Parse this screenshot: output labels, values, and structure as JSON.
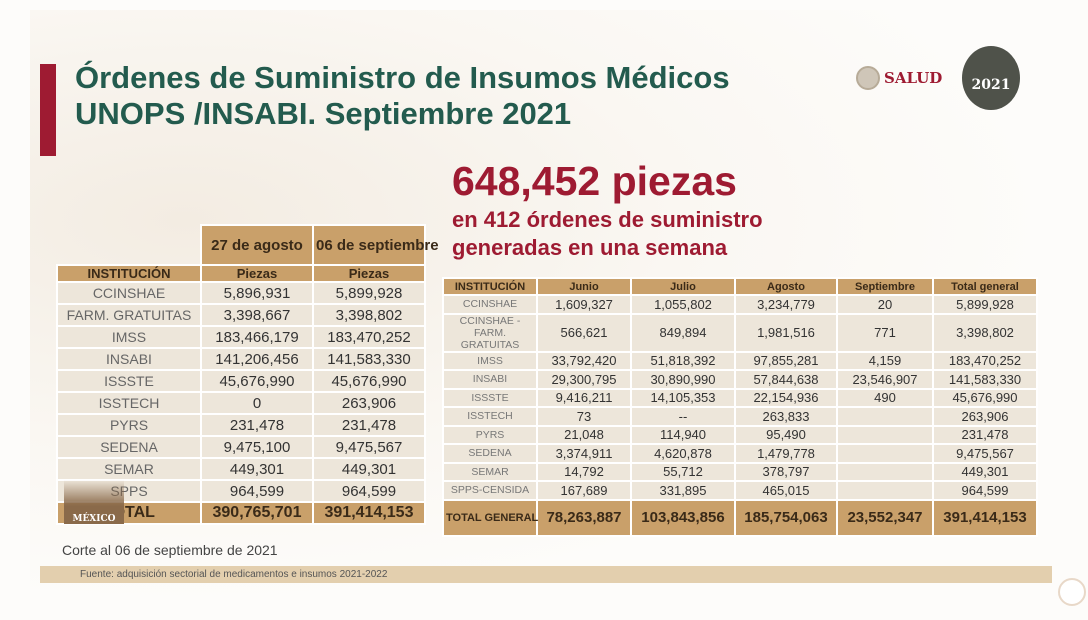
{
  "title": {
    "line1": "Órdenes de Suministro de Insumos Médicos",
    "line2": "UNOPS /INSABI. Septiembre 2021"
  },
  "logos": {
    "salud": "SALUD",
    "year": "2021",
    "gobierno": "MÉXICO"
  },
  "headline": {
    "pieces": "648,452 piezas",
    "line1": "en 412 órdenes de suministro",
    "line2": "generadas en una semana"
  },
  "left_table": {
    "col_dates": [
      "27 de agosto",
      "06 de septiembre"
    ],
    "headers": [
      "INSTITUCIÓN",
      "Piezas",
      "Piezas"
    ],
    "rows": [
      [
        "CCINSHAE",
        "5,896,931",
        "5,899,928"
      ],
      [
        "FARM. GRATUITAS",
        "3,398,667",
        "3,398,802"
      ],
      [
        "IMSS",
        "183,466,179",
        "183,470,252"
      ],
      [
        "INSABI",
        "141,206,456",
        "141,583,330"
      ],
      [
        "ISSSTE",
        "45,676,990",
        "45,676,990"
      ],
      [
        "ISSTECH",
        "0",
        "263,906"
      ],
      [
        "PYRS",
        "231,478",
        "231,478"
      ],
      [
        "SEDENA",
        "9,475,100",
        "9,475,567"
      ],
      [
        "SEMAR",
        "449,301",
        "449,301"
      ],
      [
        "SPPS",
        "964,599",
        "964,599"
      ]
    ],
    "total": [
      "TOTAL",
      "390,765,701",
      "391,414,153"
    ]
  },
  "right_table": {
    "headers": [
      "INSTITUCIÓN",
      "Junio",
      "Julio",
      "Agosto",
      "Septiembre",
      "Total general"
    ],
    "rows": [
      [
        "CCINSHAE",
        "1,609,327",
        "1,055,802",
        "3,234,779",
        "20",
        "5,899,928"
      ],
      [
        "CCINSHAE - FARM. GRATUITAS",
        "566,621",
        "849,894",
        "1,981,516",
        "771",
        "3,398,802"
      ],
      [
        "IMSS",
        "33,792,420",
        "51,818,392",
        "97,855,281",
        "4,159",
        "183,470,252"
      ],
      [
        "INSABI",
        "29,300,795",
        "30,890,990",
        "57,844,638",
        "23,546,907",
        "141,583,330"
      ],
      [
        "ISSSTE",
        "9,416,211",
        "14,105,353",
        "22,154,936",
        "490",
        "45,676,990"
      ],
      [
        "ISSTECH",
        "73",
        "--",
        "263,833",
        "",
        "263,906"
      ],
      [
        "PYRS",
        "21,048",
        "114,940",
        "95,490",
        "",
        "231,478"
      ],
      [
        "SEDENA",
        "3,374,911",
        "4,620,878",
        "1,479,778",
        "",
        "9,475,567"
      ],
      [
        "SEMAR",
        "14,792",
        "55,712",
        "378,797",
        "",
        "449,301"
      ],
      [
        "SPPS-CENSIDA",
        "167,689",
        "331,895",
        "465,015",
        "",
        "964,599"
      ]
    ],
    "total": [
      "TOTAL GENERAL",
      "78,263,887",
      "103,843,856",
      "185,754,063",
      "23,552,347",
      "391,414,153"
    ]
  },
  "corte": "Corte al 06 de septiembre de 2021",
  "fuente": "Fuente:  adquisición sectorial de medicamentos e insumos 2021-2022"
}
